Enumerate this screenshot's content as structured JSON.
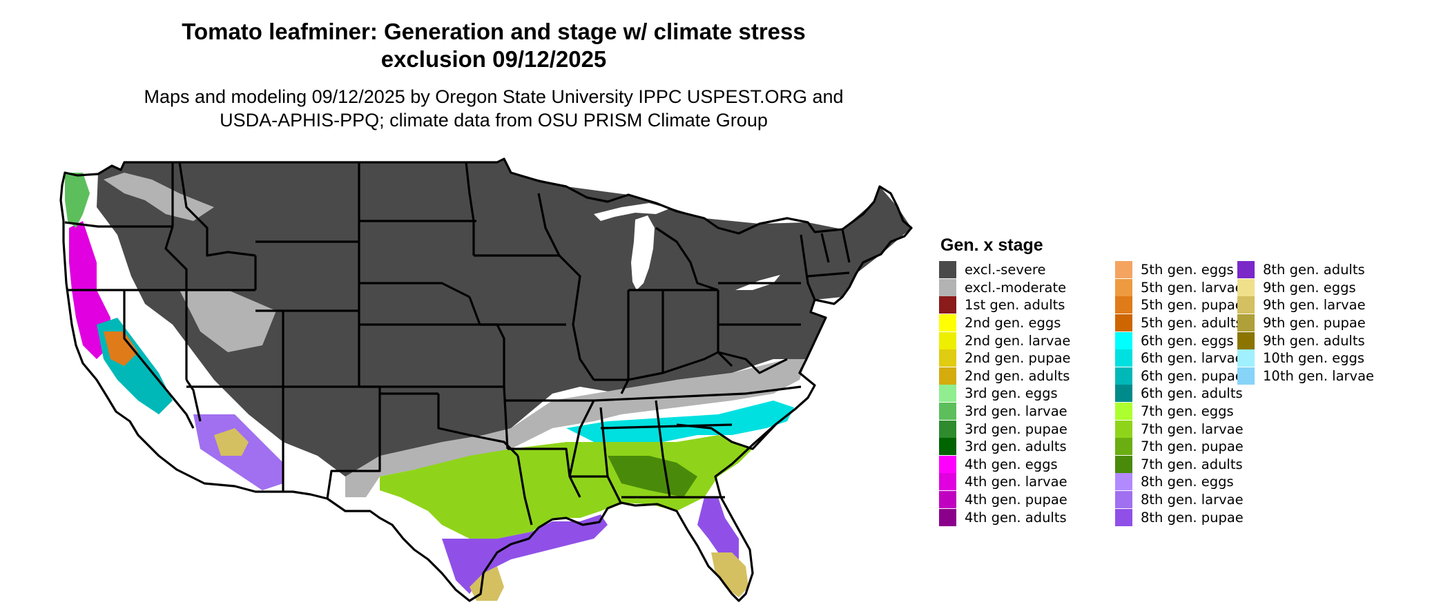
{
  "title": {
    "line1": "Tomato leafminer: Generation and stage w/ climate stress",
    "line2": "exclusion 09/12/2025"
  },
  "subtitle": {
    "line1": "Maps and modeling 09/12/2025 by Oregon State University IPPC USPEST.ORG and",
    "line2": "USDA-APHIS-PPQ; climate data from OSU PRISM Climate Group"
  },
  "legend": {
    "title": "Gen. x stage",
    "items": [
      {
        "label": "excl.-severe",
        "color": "#4a4a4a"
      },
      {
        "label": "excl.-moderate",
        "color": "#b3b3b3"
      },
      {
        "label": "1st gen. adults",
        "color": "#8b1a1a"
      },
      {
        "label": "2nd gen. eggs",
        "color": "#ffff00"
      },
      {
        "label": "2nd gen. larvae",
        "color": "#eeee00"
      },
      {
        "label": "2nd gen. pupae",
        "color": "#e0cc10"
      },
      {
        "label": "2nd gen. adults",
        "color": "#d4ac0d"
      },
      {
        "label": "3rd gen. eggs",
        "color": "#90ee90"
      },
      {
        "label": "3rd gen. larvae",
        "color": "#5cbf5c"
      },
      {
        "label": "3rd gen. pupae",
        "color": "#2e8b2e"
      },
      {
        "label": "3rd gen. adults",
        "color": "#006400"
      },
      {
        "label": "4th gen. eggs",
        "color": "#ff00ff"
      },
      {
        "label": "4th gen. larvae",
        "color": "#e000e0"
      },
      {
        "label": "4th gen. pupae",
        "color": "#c000c0"
      },
      {
        "label": "4th gen. adults",
        "color": "#8b008b"
      },
      {
        "label": "5th gen. eggs",
        "color": "#f4a460"
      },
      {
        "label": "5th gen. larvae",
        "color": "#ee9a40"
      },
      {
        "label": "5th gen. pupae",
        "color": "#e07b1a"
      },
      {
        "label": "5th gen. adults",
        "color": "#cd6600"
      },
      {
        "label": "6th gen. eggs",
        "color": "#00ffff"
      },
      {
        "label": "6th gen. larvae",
        "color": "#00e0e0"
      },
      {
        "label": "6th gen. pupae",
        "color": "#00b8b8"
      },
      {
        "label": "6th gen. adults",
        "color": "#008b8b"
      },
      {
        "label": "7th gen. eggs",
        "color": "#adff2f"
      },
      {
        "label": "7th gen. larvae",
        "color": "#8fd41a"
      },
      {
        "label": "7th gen. pupae",
        "color": "#6aae12"
      },
      {
        "label": "7th gen. adults",
        "color": "#4a8a0a"
      },
      {
        "label": "8th gen. eggs",
        "color": "#b28aff"
      },
      {
        "label": "8th gen. larvae",
        "color": "#a070f0"
      },
      {
        "label": "8th gen. pupae",
        "color": "#9050e8"
      },
      {
        "label": "8th gen. adults",
        "color": "#7a28c8"
      },
      {
        "label": "9th gen. eggs",
        "color": "#f0e08c"
      },
      {
        "label": "9th gen. larvae",
        "color": "#d4c060"
      },
      {
        "label": "9th gen. pupae",
        "color": "#b0a03a"
      },
      {
        "label": "9th gen. adults",
        "color": "#8b7500"
      },
      {
        "label": "10th gen. eggs",
        "color": "#a0f0ff"
      },
      {
        "label": "10th gen. larvae",
        "color": "#87d4f8"
      }
    ]
  },
  "map_colors": {
    "state_border": "#000000",
    "lake_fill": "#ffffff"
  }
}
